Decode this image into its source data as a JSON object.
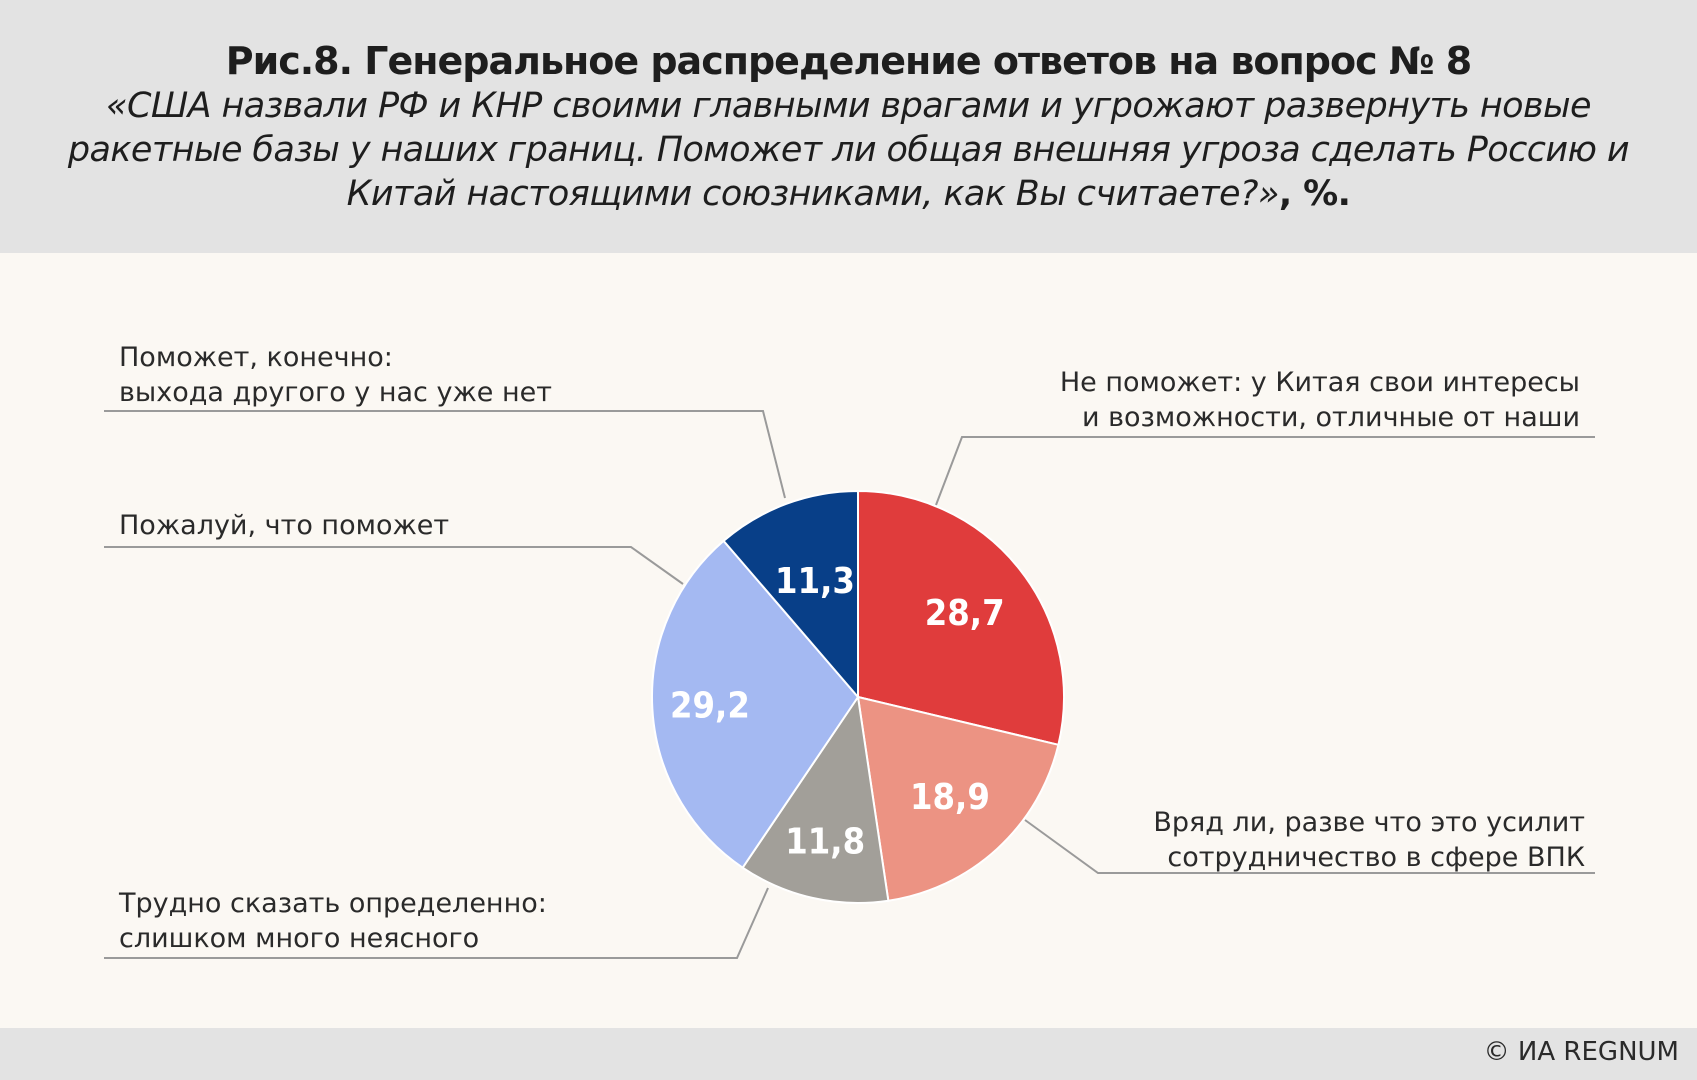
{
  "title": "Рис.8. Генеральное распределение ответов на вопрос № 8",
  "subtitle": {
    "text": "«США назвали РФ и КНР своими главными врагами и угрожают развернуть новые ракетные базы у наших границ. Поможет ли общая внешняя угроза сделать Россию и Китай настоящими союзниками, как Вы считаете?»",
    "unit": ", %."
  },
  "chart_data": {
    "type": "pie",
    "title": "Рис.8. Генеральное распределение ответов на вопрос № 8",
    "unit": "%",
    "slices": [
      {
        "label": "Не поможет: у Китая свои интересы\nи возможности, отличные от наши",
        "value": 28.7,
        "display": "28,7",
        "color": "#e03c3c"
      },
      {
        "label": "Вряд ли, разве что это усилит\nсотрудничество в сфере ВПК",
        "value": 18.9,
        "display": "18,9",
        "color": "#ec9383"
      },
      {
        "label": "Трудно сказать определенно:\nслишком много неясного",
        "value": 11.8,
        "display": "11,8",
        "color": "#a29f99"
      },
      {
        "label": "Пожалуй, что поможет",
        "value": 29.2,
        "display": "29,2",
        "color": "#a4b9f2"
      },
      {
        "label": "Поможет, конечно:\nвыхода другого у нас уже нет",
        "value": 11.3,
        "display": "11,3",
        "color": "#083f88"
      }
    ]
  },
  "footer": {
    "copyright": "© ИА REGNUM"
  }
}
